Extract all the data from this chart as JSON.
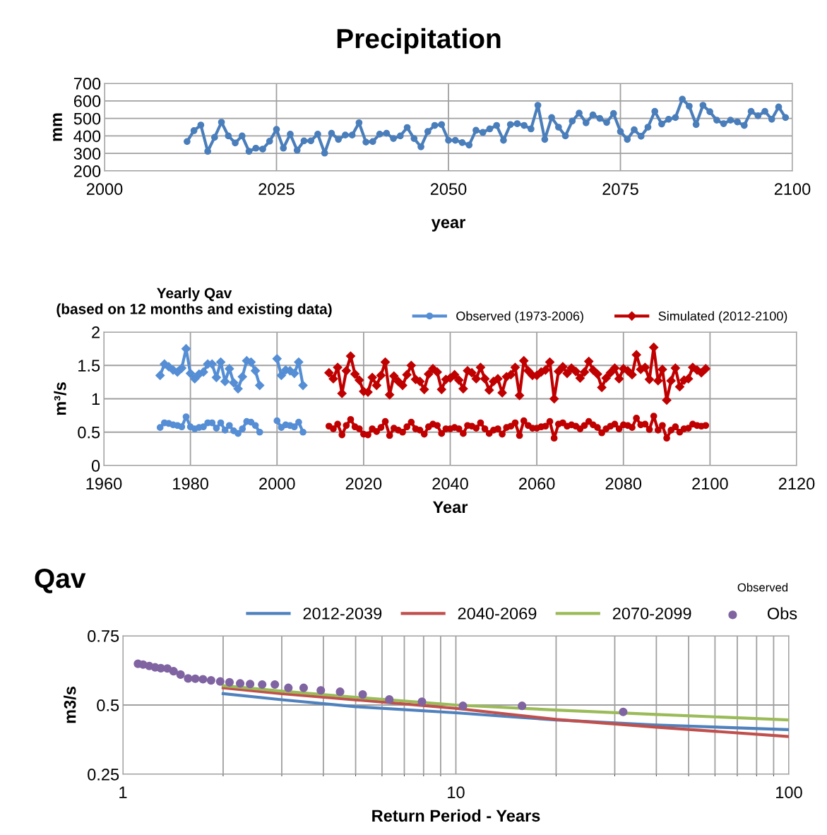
{
  "chart_data": [
    {
      "type": "line",
      "title": "Precipitation",
      "xlabel": "year",
      "ylabel": "mm",
      "xlim": [
        2000,
        2100
      ],
      "xticks": [
        2000,
        2025,
        2050,
        2075,
        2100
      ],
      "ylim": [
        200,
        700
      ],
      "yticks": [
        200,
        300,
        400,
        500,
        600,
        700
      ],
      "grid": true,
      "marker": "circle",
      "series": [
        {
          "color": "#4a7ebb",
          "x": [
            2012,
            2013,
            2014,
            2015,
            2016,
            2017,
            2018,
            2019,
            2020,
            2021,
            2022,
            2023,
            2024,
            2025,
            2026,
            2027,
            2028,
            2029,
            2030,
            2031,
            2032,
            2033,
            2034,
            2035,
            2036,
            2037,
            2038,
            2039,
            2040,
            2041,
            2042,
            2043,
            2044,
            2045,
            2046,
            2047,
            2048,
            2049,
            2050,
            2051,
            2052,
            2053,
            2054,
            2055,
            2056,
            2057,
            2058,
            2059,
            2060,
            2061,
            2062,
            2063,
            2064,
            2065,
            2066,
            2067,
            2068,
            2069,
            2070,
            2071,
            2072,
            2073,
            2074,
            2075,
            2076,
            2077,
            2078,
            2079,
            2080,
            2081,
            2082,
            2083,
            2084,
            2085,
            2086,
            2087,
            2088,
            2089,
            2090,
            2091,
            2092,
            2093,
            2094,
            2095,
            2096,
            2097,
            2098,
            2099
          ],
          "values": [
            368,
            430,
            462,
            312,
            392,
            478,
            400,
            360,
            400,
            312,
            330,
            325,
            370,
            437,
            330,
            410,
            318,
            372,
            372,
            410,
            302,
            415,
            380,
            405,
            405,
            475,
            365,
            368,
            410,
            415,
            385,
            400,
            448,
            385,
            338,
            425,
            460,
            465,
            375,
            375,
            362,
            348,
            432,
            420,
            440,
            460,
            375,
            465,
            470,
            460,
            440,
            575,
            380,
            505,
            450,
            400,
            485,
            530,
            475,
            520,
            500,
            477,
            528,
            425,
            380,
            435,
            398,
            450,
            540,
            468,
            495,
            505,
            610,
            570,
            465,
            575,
            538,
            490,
            470,
            490,
            480,
            460,
            540,
            515,
            540,
            495,
            565,
            505
          ]
        }
      ]
    },
    {
      "type": "line",
      "title": "Yearly Qav\n(based on 12 months and existing data)",
      "xlabel": "Year",
      "ylabel": "m³/s",
      "xlim": [
        1960,
        2120
      ],
      "xticks": [
        1960,
        1980,
        2000,
        2020,
        2040,
        2060,
        2080,
        2100,
        2120
      ],
      "ylim": [
        0,
        2
      ],
      "yticks": [
        0,
        0.5,
        1,
        1.5,
        2
      ],
      "grid": true,
      "legend": "top right",
      "series": [
        {
          "name": "Observed (1973-2006)",
          "color": "#558ed5",
          "marker": "circle",
          "x": [
            1973,
            1974,
            1975,
            1976,
            1977,
            1978,
            1979,
            1980,
            1981,
            1982,
            1983,
            1984,
            1985,
            1986,
            1987,
            1988,
            1989,
            1990,
            1991,
            1992,
            1993,
            1994,
            1995,
            1996,
            1997,
            1998,
            1999,
            2000,
            2001,
            2002,
            2003,
            2004,
            2005,
            2006
          ],
          "values": [
            0.57,
            0.64,
            0.63,
            0.61,
            0.6,
            0.58,
            0.73,
            0.58,
            0.55,
            0.57,
            0.58,
            0.64,
            0.64,
            0.56,
            0.64,
            0.53,
            0.6,
            0.52,
            0.48,
            0.55,
            0.66,
            0.65,
            0.6,
            0.5,
            null,
            null,
            null,
            0.67,
            0.57,
            0.61,
            0.6,
            0.58,
            0.65,
            0.5
          ]
        },
        {
          "color": "#558ed5",
          "marker": "diamond",
          "x": [
            1973,
            1974,
            1975,
            1976,
            1977,
            1978,
            1979,
            1980,
            1981,
            1982,
            1983,
            1984,
            1985,
            1986,
            1987,
            1988,
            1989,
            1990,
            1991,
            1992,
            1993,
            1994,
            1995,
            1996,
            1997,
            1998,
            1999,
            2000,
            2001,
            2002,
            2003,
            2004,
            2005,
            2006
          ],
          "values": [
            1.35,
            1.52,
            1.48,
            1.43,
            1.4,
            1.46,
            1.75,
            1.38,
            1.3,
            1.37,
            1.4,
            1.52,
            1.52,
            1.32,
            1.55,
            1.26,
            1.45,
            1.24,
            1.15,
            1.33,
            1.57,
            1.55,
            1.42,
            1.2,
            null,
            null,
            null,
            1.6,
            1.35,
            1.43,
            1.42,
            1.38,
            1.55,
            1.2
          ]
        },
        {
          "color": "#c00000",
          "marker": "circle",
          "x": [
            2012,
            2013,
            2014,
            2015,
            2016,
            2017,
            2018,
            2019,
            2020,
            2021,
            2022,
            2023,
            2024,
            2025,
            2026,
            2027,
            2028,
            2029,
            2030,
            2031,
            2032,
            2033,
            2034,
            2035,
            2036,
            2037,
            2038,
            2039,
            2040,
            2041,
            2042,
            2043,
            2044,
            2045,
            2046,
            2047,
            2048,
            2049,
            2050,
            2051,
            2052,
            2053,
            2054,
            2055,
            2056,
            2057,
            2058,
            2059,
            2060,
            2061,
            2062,
            2063,
            2064,
            2065,
            2066,
            2067,
            2068,
            2069,
            2070,
            2071,
            2072,
            2073,
            2074,
            2075,
            2076,
            2077,
            2078,
            2079,
            2080,
            2081,
            2082,
            2083,
            2084,
            2085,
            2086,
            2087,
            2088,
            2089,
            2090,
            2091,
            2092,
            2093,
            2094,
            2095,
            2096,
            2097,
            2098,
            2099
          ],
          "values": [
            0.59,
            0.55,
            0.62,
            0.46,
            0.6,
            0.69,
            0.58,
            0.55,
            0.47,
            0.46,
            0.55,
            0.51,
            0.57,
            0.66,
            0.45,
            0.56,
            0.53,
            0.5,
            0.58,
            0.65,
            0.55,
            0.53,
            0.47,
            0.58,
            0.62,
            0.6,
            0.48,
            0.55,
            0.55,
            0.57,
            0.55,
            0.48,
            0.6,
            0.59,
            0.56,
            0.64,
            0.55,
            0.48,
            0.53,
            0.55,
            0.47,
            0.57,
            0.59,
            0.64,
            0.45,
            0.67,
            0.6,
            0.56,
            0.56,
            0.58,
            0.59,
            0.66,
            0.41,
            0.62,
            0.64,
            0.59,
            0.61,
            0.59,
            0.55,
            0.6,
            0.66,
            0.61,
            0.57,
            0.49,
            0.55,
            0.59,
            0.62,
            0.55,
            0.61,
            0.6,
            0.57,
            0.71,
            0.61,
            0.62,
            0.54,
            0.74,
            0.53,
            0.6,
            0.41,
            0.53,
            0.58,
            0.5,
            0.55,
            0.56,
            0.62,
            0.6,
            0.59,
            0.6
          ]
        },
        {
          "name": "Simulated (2012-2100)",
          "color": "#c00000",
          "marker": "diamond",
          "x": [
            2012,
            2013,
            2014,
            2015,
            2016,
            2017,
            2018,
            2019,
            2020,
            2021,
            2022,
            2023,
            2024,
            2025,
            2026,
            2027,
            2028,
            2029,
            2030,
            2031,
            2032,
            2033,
            2034,
            2035,
            2036,
            2037,
            2038,
            2039,
            2040,
            2041,
            2042,
            2043,
            2044,
            2045,
            2046,
            2047,
            2048,
            2049,
            2050,
            2051,
            2052,
            2053,
            2054,
            2055,
            2056,
            2057,
            2058,
            2059,
            2060,
            2061,
            2062,
            2063,
            2064,
            2065,
            2066,
            2067,
            2068,
            2069,
            2070,
            2071,
            2072,
            2073,
            2074,
            2075,
            2076,
            2077,
            2078,
            2079,
            2080,
            2081,
            2082,
            2083,
            2084,
            2085,
            2086,
            2087,
            2088,
            2089,
            2090,
            2091,
            2092,
            2093,
            2094,
            2095,
            2096,
            2097,
            2098,
            2099
          ],
          "values": [
            1.39,
            1.3,
            1.47,
            1.08,
            1.42,
            1.64,
            1.37,
            1.28,
            1.11,
            1.1,
            1.32,
            1.2,
            1.35,
            1.55,
            1.06,
            1.34,
            1.26,
            1.2,
            1.36,
            1.5,
            1.29,
            1.26,
            1.14,
            1.37,
            1.45,
            1.4,
            1.14,
            1.29,
            1.31,
            1.36,
            1.28,
            1.15,
            1.42,
            1.39,
            1.3,
            1.47,
            1.3,
            1.13,
            1.26,
            1.3,
            1.09,
            1.33,
            1.36,
            1.47,
            1.05,
            1.57,
            1.42,
            1.35,
            1.35,
            1.4,
            1.43,
            1.55,
            1.0,
            1.41,
            1.48,
            1.38,
            1.46,
            1.41,
            1.31,
            1.4,
            1.56,
            1.43,
            1.37,
            1.17,
            1.31,
            1.39,
            1.46,
            1.3,
            1.45,
            1.42,
            1.36,
            1.66,
            1.44,
            1.47,
            1.29,
            1.77,
            1.27,
            1.44,
            0.98,
            1.27,
            1.46,
            1.18,
            1.28,
            1.3,
            1.47,
            1.43,
            1.39,
            1.45
          ]
        }
      ]
    },
    {
      "type": "line",
      "title": "Qav",
      "xlabel": "Return Period - Years",
      "ylabel": "m3/s",
      "log": "x",
      "xlim": [
        1,
        100
      ],
      "xticks": [
        1,
        10,
        100
      ],
      "ylim": [
        0.25,
        0.75
      ],
      "yticks": [
        0.25,
        0.5,
        0.75
      ],
      "grid": true,
      "legend": "top",
      "annotations": [
        "Observed"
      ],
      "series": [
        {
          "name": "2012-2039",
          "color": "#4f81bd",
          "x": [
            2,
            3,
            5,
            10,
            20,
            40,
            100
          ],
          "values": [
            0.541,
            0.519,
            0.494,
            0.472,
            0.446,
            0.428,
            0.411
          ]
        },
        {
          "name": "2040-2069",
          "color": "#c0504d",
          "x": [
            2,
            3,
            5,
            10,
            20,
            40,
            100
          ],
          "values": [
            0.562,
            0.541,
            0.519,
            0.488,
            0.448,
            0.42,
            0.386
          ]
        },
        {
          "name": "2070-2099",
          "color": "#9bbb59",
          "x": [
            2,
            3,
            5,
            10,
            20,
            40,
            100
          ],
          "values": [
            0.57,
            0.55,
            0.528,
            0.5,
            0.482,
            0.466,
            0.446
          ]
        },
        {
          "name": "Obs",
          "type": "scatter",
          "color": "#8064a2",
          "x": [
            1.11,
            1.15,
            1.2,
            1.25,
            1.3,
            1.36,
            1.42,
            1.49,
            1.57,
            1.65,
            1.74,
            1.84,
            1.96,
            2.09,
            2.25,
            2.41,
            2.62,
            2.86,
            3.14,
            3.49,
            3.93,
            4.49,
            5.25,
            6.31,
            7.91,
            10.5,
            15.8,
            31.8
          ],
          "values": [
            0.649,
            0.646,
            0.641,
            0.636,
            0.633,
            0.632,
            0.622,
            0.61,
            0.596,
            0.595,
            0.593,
            0.589,
            0.585,
            0.582,
            0.578,
            0.576,
            0.574,
            0.574,
            0.562,
            0.562,
            0.553,
            0.548,
            0.538,
            0.52,
            0.512,
            0.497,
            0.497,
            0.475
          ]
        }
      ]
    }
  ]
}
